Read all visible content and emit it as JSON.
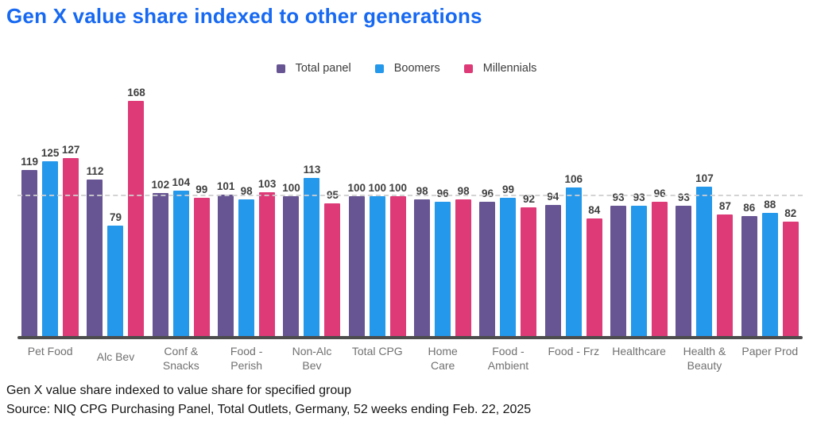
{
  "title": "Gen X value share indexed to other generations",
  "colors": {
    "title": "#1769f2",
    "total_panel": "#675593",
    "boomers": "#2498eb",
    "millennials": "#de3a78",
    "axis_line": "#4d4d4d",
    "reference_line": "#cfcfcf",
    "value_label": "#3f3f3f",
    "category_label": "#707070"
  },
  "chart_data": {
    "type": "bar",
    "title": "Gen X value share indexed to other generations",
    "categories": [
      "Pet Food",
      "Alc Bev",
      "Conf & Snacks",
      "Food - Perish",
      "Non-Alc Bev",
      "Total CPG",
      "Home Care",
      "Food - Ambient",
      "Food - Frz",
      "Healthcare",
      "Health & Beauty",
      "Paper Prod"
    ],
    "category_lines": [
      [
        "Pet Food"
      ],
      [
        "Alc Bev"
      ],
      [
        "Conf &",
        "Snacks"
      ],
      [
        "Food -",
        "Perish"
      ],
      [
        "Non-Alc",
        "Bev"
      ],
      [
        "Total CPG"
      ],
      [
        "Home",
        "Care"
      ],
      [
        "Food -",
        "Ambient"
      ],
      [
        "Food - Frz"
      ],
      [
        "Healthcare"
      ],
      [
        "Health &",
        "Beauty"
      ],
      [
        "Paper Prod"
      ]
    ],
    "series": [
      {
        "name": "Total panel",
        "color": "#675593",
        "values": [
          119,
          112,
          102,
          101,
          100,
          100,
          98,
          96,
          94,
          93,
          93,
          86
        ]
      },
      {
        "name": "Boomers",
        "color": "#2498eb",
        "values": [
          125,
          79,
          104,
          98,
          113,
          100,
          96,
          99,
          106,
          93,
          107,
          88
        ]
      },
      {
        "name": "Millennials",
        "color": "#de3a78",
        "values": [
          127,
          168,
          99,
          103,
          95,
          100,
          98,
          92,
          84,
          96,
          87,
          82
        ]
      }
    ],
    "reference_line": 100,
    "ylim": [
      0,
      182
    ],
    "grid": false,
    "legend_position": "top-center",
    "data_labels": true
  },
  "footer": {
    "line1": "Gen X value share indexed to value share for specified group",
    "line2": "Source: NIQ CPG Purchasing Panel, Total Outlets, Germany, 52 weeks ending Feb. 22, 2025"
  }
}
